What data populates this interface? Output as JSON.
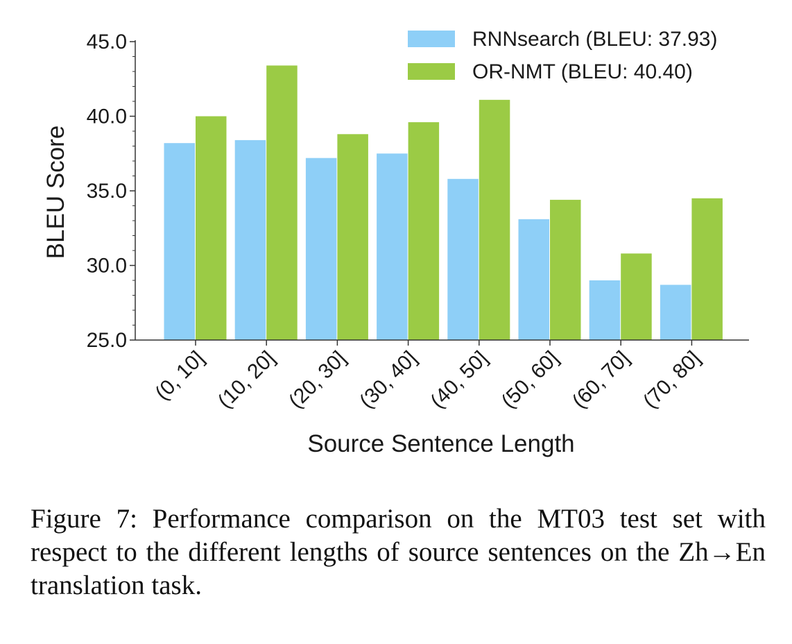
{
  "chart_data": {
    "type": "bar",
    "categories": [
      "(0, 10]",
      "(10, 20]",
      "(20, 30]",
      "(30, 40]",
      "(40, 50]",
      "(50, 60]",
      "(60, 70]",
      "(70, 80]"
    ],
    "series": [
      {
        "name": "RNNsearch (BLEU: 37.93)",
        "color": "#8ecff7",
        "values": [
          38.2,
          38.4,
          37.2,
          37.5,
          35.8,
          33.1,
          29.0,
          28.7
        ]
      },
      {
        "name": "OR-NMT (BLEU: 40.40)",
        "color": "#9bcb45",
        "values": [
          40.0,
          43.4,
          38.8,
          39.6,
          41.1,
          34.4,
          30.8,
          34.5
        ]
      }
    ],
    "xlabel": "Source Sentence Length",
    "ylabel": "BLEU Score",
    "ylim": [
      25.0,
      45.0
    ],
    "yticks": [
      "25.0",
      "30.0",
      "35.0",
      "40.0",
      "45.0"
    ],
    "legend_position": "top-right",
    "grid": false
  },
  "caption": "Figure 7: Performance comparison on the MT03 test set with respect to the different lengths of source sentences on the Zh→En translation task."
}
